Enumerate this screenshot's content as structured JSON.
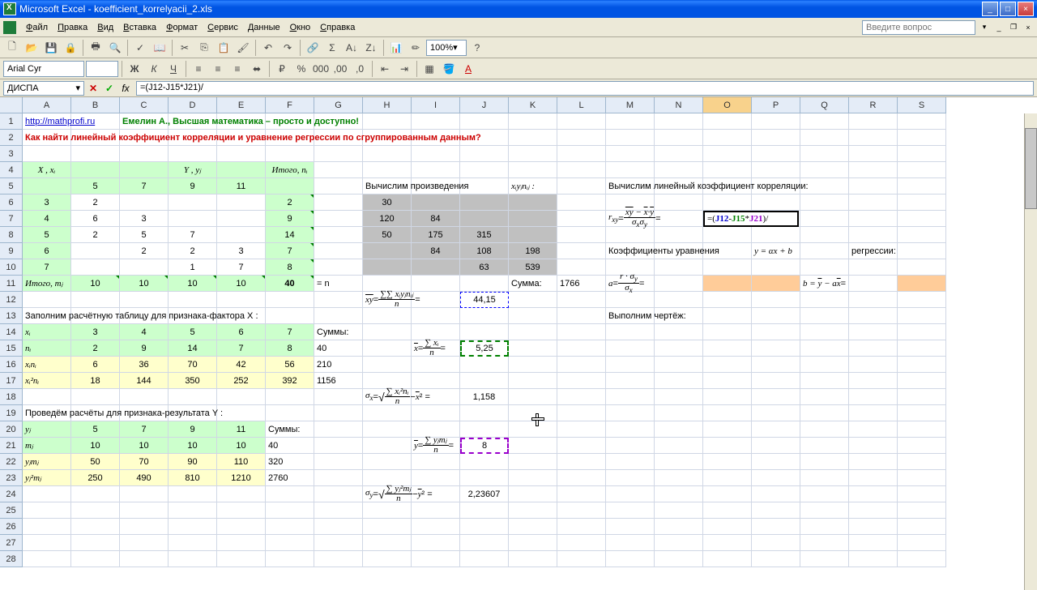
{
  "title": "Microsoft Excel - koefficient_korrelyacii_2.xls",
  "menus": [
    "Файл",
    "Правка",
    "Вид",
    "Вставка",
    "Формат",
    "Сервис",
    "Данные",
    "Окно",
    "Справка"
  ],
  "question_placeholder": "Введите вопрос",
  "font_name": "Arial Cyr",
  "font_size": "",
  "zoom": "100%",
  "name_box": "ДИСПА",
  "formula": "=(J12-J15*J21)/",
  "formula_parts": {
    "p1": "=(",
    "j12": "J12",
    "m1": "-",
    "j15": "J15",
    "m2": "*",
    "j21": "J21",
    "p2": ")/"
  },
  "cols": [
    "A",
    "B",
    "C",
    "D",
    "E",
    "F",
    "G",
    "H",
    "I",
    "J",
    "K",
    "L",
    "M",
    "N",
    "O",
    "P",
    "Q",
    "R",
    "S"
  ],
  "rows": 28,
  "link_text": "http://mathprofi.ru",
  "title1": "Емелин А., Высшая математика – просто и доступно!",
  "title2": "Как найти линейный коэффициент корреляции и уравнение регрессии по сгруппированным данным?",
  "labels": {
    "X_xi": "X , xᵢ",
    "Y_yj": "Y , yⱼ",
    "Itogo_ni": "Итого, nᵢ",
    "Itogo_mj": "Итого, mⱼ",
    "eq_n": "= n",
    "calc_prod": "Вычислим произведения",
    "xiyjnij": "xᵢyⱼnᵢⱼ :",
    "Summa": "Сумма:",
    "calc_coef": "Вычислим линейный коэффициент корреляции:",
    "coef_eq": "Коэффициенты уравнения",
    "yaxb": "y = αx + b",
    "regress": "регрессии:",
    "fill_table": "Заполним расчётную таблицу для признака-фактора X :",
    "Summy": "Суммы:",
    "calc_result": "Проведём расчёты для признака-результата Y :",
    "make_chart": "Выполним чертёж:",
    "xi": "xᵢ",
    "ni": "nᵢ",
    "xini": "xᵢnᵢ",
    "xi2ni": "xᵢ²nᵢ",
    "yj": "yⱼ",
    "mj": "mⱼ",
    "yjmj": "yⱼmⱼ",
    "yj2mj": "yⱼ²mⱼ"
  },
  "yj_vals": [
    "5",
    "7",
    "9",
    "11"
  ],
  "xi_vals": [
    "3",
    "4",
    "5",
    "6",
    "7"
  ],
  "freq": [
    [
      "2",
      "",
      "",
      "",
      "2"
    ],
    [
      "6",
      "3",
      "",
      "",
      "9"
    ],
    [
      "2",
      "5",
      "7",
      "",
      "14"
    ],
    [
      "",
      "2",
      "2",
      "3",
      "7"
    ],
    [
      "",
      "",
      "1",
      "7",
      "8"
    ]
  ],
  "mj_vals": [
    "10",
    "10",
    "10",
    "10"
  ],
  "n_total": "40",
  "prod": [
    [
      "30",
      "",
      "",
      ""
    ],
    [
      "120",
      "84",
      "",
      ""
    ],
    [
      "50",
      "175",
      "315",
      ""
    ],
    [
      "",
      "84",
      "108",
      "198"
    ],
    [
      "",
      "",
      "63",
      "539"
    ]
  ],
  "sum_prod": "1766",
  "xy_bar": "44,15",
  "factor_X": {
    "xi": [
      "3",
      "4",
      "5",
      "6",
      "7"
    ],
    "ni": [
      "2",
      "9",
      "14",
      "7",
      "8"
    ],
    "xini": [
      "6",
      "36",
      "70",
      "42",
      "56"
    ],
    "xi2ni": [
      "18",
      "144",
      "350",
      "252",
      "392"
    ],
    "sums": [
      "40",
      "210",
      "1156"
    ]
  },
  "x_bar": "5,25",
  "sigma_x": "1,158",
  "result_Y": {
    "yj": [
      "5",
      "7",
      "9",
      "11"
    ],
    "mj": [
      "10",
      "10",
      "10",
      "10"
    ],
    "yjmj": [
      "50",
      "70",
      "90",
      "110"
    ],
    "yj2mj": [
      "250",
      "490",
      "810",
      "1210"
    ],
    "sums": [
      "40",
      "320",
      "2760"
    ]
  },
  "y_bar": "8",
  "sigma_y": "2,23607",
  "colors": {
    "green_bg": "#ccffcc",
    "yellow_bg": "#ffffcc",
    "orange_bg": "#ffcc99",
    "gray_bg": "#c0c0c0",
    "link": "#0000cc",
    "green_txt": "#008000",
    "red_txt": "#cc0000"
  }
}
